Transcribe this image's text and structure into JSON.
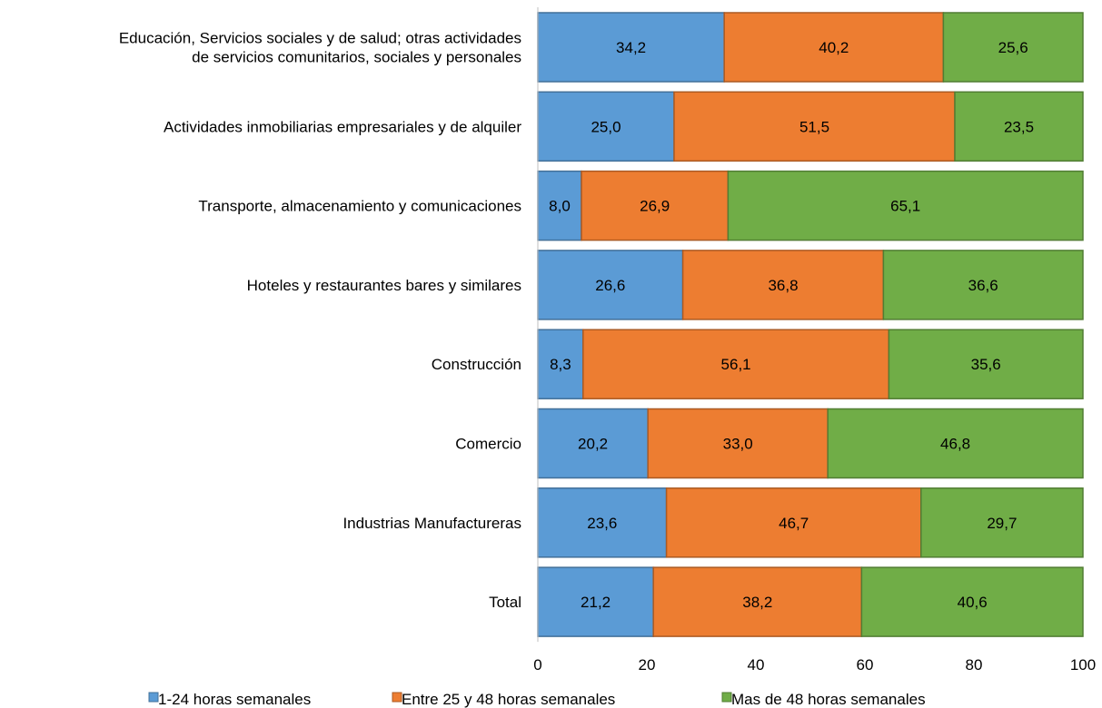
{
  "chart_data": {
    "type": "bar",
    "orientation": "horizontal",
    "stacked": true,
    "categories": [
      [
        "Educación, Servicios sociales y de salud;  otras actividades",
        "de servicios comunitarios, sociales y personales"
      ],
      [
        "Actividades inmobiliarias empresariales y de alquiler"
      ],
      [
        "Transporte, almacenamiento y comunicaciones"
      ],
      [
        "Hoteles y restaurantes bares y similares"
      ],
      [
        "Construcción"
      ],
      [
        "Comercio"
      ],
      [
        "Industrias Manufactureras"
      ],
      [
        "Total"
      ]
    ],
    "series": [
      {
        "name": "1-24 horas semanales",
        "color": "#5b9bd5",
        "values": [
          34.2,
          25.0,
          8.0,
          26.6,
          8.3,
          20.2,
          23.6,
          21.2
        ],
        "labels": [
          "34,2",
          "25,0",
          "8,0",
          "26,6",
          "8,3",
          "20,2",
          "23,6",
          "21,2"
        ]
      },
      {
        "name": "Entre 25  y 48 horas semanales",
        "color": "#ed7d31",
        "values": [
          40.2,
          51.5,
          26.9,
          36.8,
          56.1,
          33.0,
          46.7,
          38.2
        ],
        "labels": [
          "40,2",
          "51,5",
          "26,9",
          "36,8",
          "56,1",
          "33,0",
          "46,7",
          "38,2"
        ]
      },
      {
        "name": "Mas de 48 horas semanales",
        "color": "#70ad47",
        "values": [
          25.6,
          23.5,
          65.1,
          36.6,
          35.6,
          46.8,
          29.7,
          40.6
        ],
        "labels": [
          "25,6",
          "23,5",
          "65,1",
          "36,6",
          "35,6",
          "46,8",
          "29,7",
          "40,6"
        ]
      }
    ],
    "xlim": [
      0,
      100
    ],
    "xticks": [
      0,
      20,
      40,
      60,
      80,
      100
    ],
    "xtick_labels": [
      "0",
      "20",
      "40",
      "60",
      "80",
      "100"
    ],
    "title": "",
    "xlabel": "",
    "ylabel": "",
    "grid": false,
    "legend_position": "bottom"
  }
}
